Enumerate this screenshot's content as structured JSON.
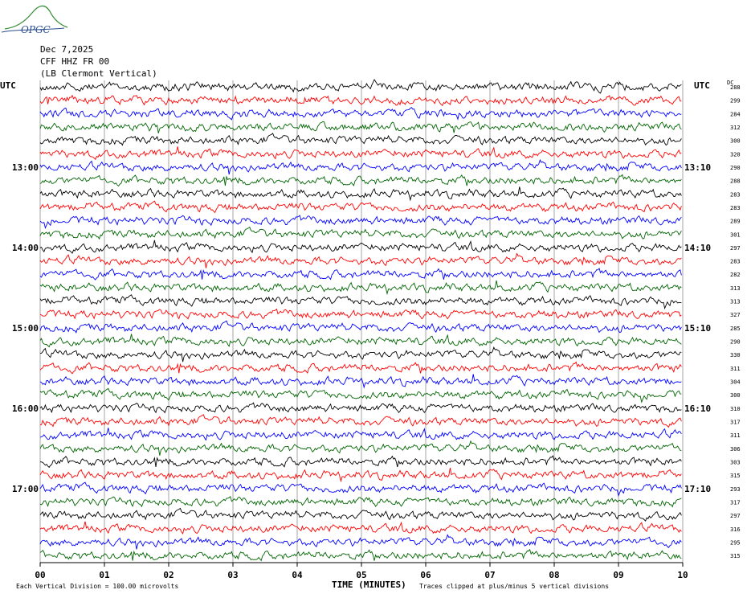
{
  "header": {
    "logo_text": "OPGC",
    "date": "Dec 7,2025",
    "station": "CFF HHZ FR 00",
    "location": "(LB  Clermont Vertical)"
  },
  "colors": {
    "trace_cycle": [
      "#000000",
      "#ff0000",
      "#0000ff",
      "#006400"
    ],
    "grid": "#909090",
    "logo": "#2a4f8f"
  },
  "chart_data": {
    "type": "line",
    "subtype": "helicorder",
    "xlabel": "TIME (MINUTES)",
    "xlim": [
      0,
      10
    ],
    "x_ticks": [
      "00",
      "01",
      "02",
      "03",
      "04",
      "05",
      "06",
      "07",
      "08",
      "09",
      "10"
    ],
    "left_axis_title": "UTC",
    "right_axis_title": "UTC",
    "dc_header": "DC",
    "minutes_per_line": 10,
    "line_count": 36,
    "left_labels": [
      {
        "line": 6,
        "text": "13:00"
      },
      {
        "line": 12,
        "text": "14:00"
      },
      {
        "line": 18,
        "text": "15:00"
      },
      {
        "line": 24,
        "text": "16:00"
      },
      {
        "line": 30,
        "text": "17:00"
      }
    ],
    "right_labels": [
      {
        "line": 6,
        "text": "13:10"
      },
      {
        "line": 12,
        "text": "14:10"
      },
      {
        "line": 18,
        "text": "15:10"
      },
      {
        "line": 24,
        "text": "16:10"
      },
      {
        "line": 30,
        "text": "17:10"
      }
    ],
    "dc_offsets": [
      288,
      299,
      284,
      312,
      300,
      320,
      290,
      288,
      283,
      283,
      289,
      301,
      297,
      283,
      282,
      313,
      313,
      327,
      285,
      290,
      330,
      311,
      304,
      300,
      310,
      317,
      311,
      306,
      303,
      315,
      293,
      317,
      297,
      316,
      295,
      315
    ],
    "footer_scale": "Each Vertical Division =  100.00 microvolts",
    "footer_clip": "Traces clipped at plus/minus 5 vertical divisions"
  }
}
